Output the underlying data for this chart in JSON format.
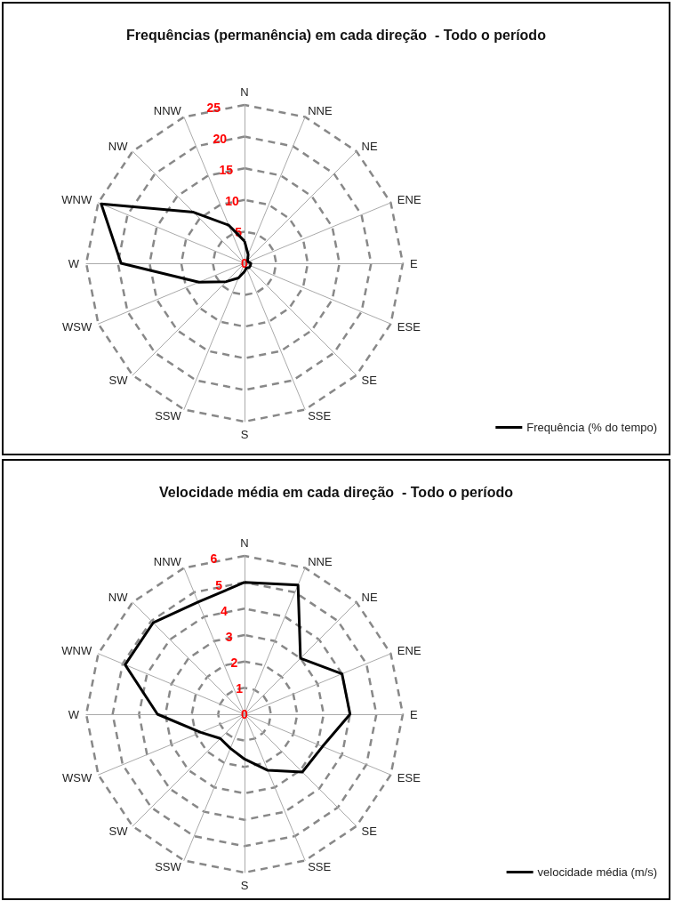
{
  "chart_data": [
    {
      "type": "radar",
      "title": "Frequências (permanência) em cada direção  - Todo o período",
      "categories": [
        "N",
        "NNE",
        "NE",
        "ENE",
        "E",
        "ESE",
        "SE",
        "SSE",
        "S",
        "SSW",
        "SW",
        "WSW",
        "W",
        "WNW",
        "NW",
        "NNW"
      ],
      "series": [
        {
          "name": "Frequência (% do tempo)",
          "color": "#000000",
          "values": [
            3.5,
            1.5,
            0.7,
            0.6,
            1.0,
            1.0,
            1.0,
            0.8,
            1.3,
            2.5,
            4.1,
            7.8,
            19.5,
            24.5,
            11.4,
            6.5
          ]
        }
      ],
      "ylim": [
        0,
        25
      ],
      "yticks": [
        0,
        5,
        10,
        15,
        20,
        25
      ],
      "grid": true,
      "legend": "bottom right",
      "marker": "none",
      "line_style": "solid"
    },
    {
      "type": "radar",
      "title": "Velocidade média em cada direção  - Todo o período",
      "categories": [
        "N",
        "NNE",
        "NE",
        "ENE",
        "E",
        "ESE",
        "SE",
        "SSE",
        "S",
        "SSW",
        "SW",
        "WSW",
        "W",
        "WNW",
        "NW",
        "NNW"
      ],
      "series": [
        {
          "name": "velocidade média (m/s)",
          "color": "#000000",
          "values": [
            5.0,
            5.3,
            3.0,
            4.0,
            4.0,
            3.2,
            3.1,
            2.3,
            1.7,
            1.4,
            1.3,
            1.8,
            3.3,
            4.9,
            4.9,
            4.6
          ]
        }
      ],
      "ylim": [
        0,
        6
      ],
      "yticks": [
        0,
        1,
        2,
        3,
        4,
        5,
        6
      ],
      "grid": true,
      "legend": "bottom right",
      "marker": "none",
      "line_style": "solid"
    }
  ]
}
